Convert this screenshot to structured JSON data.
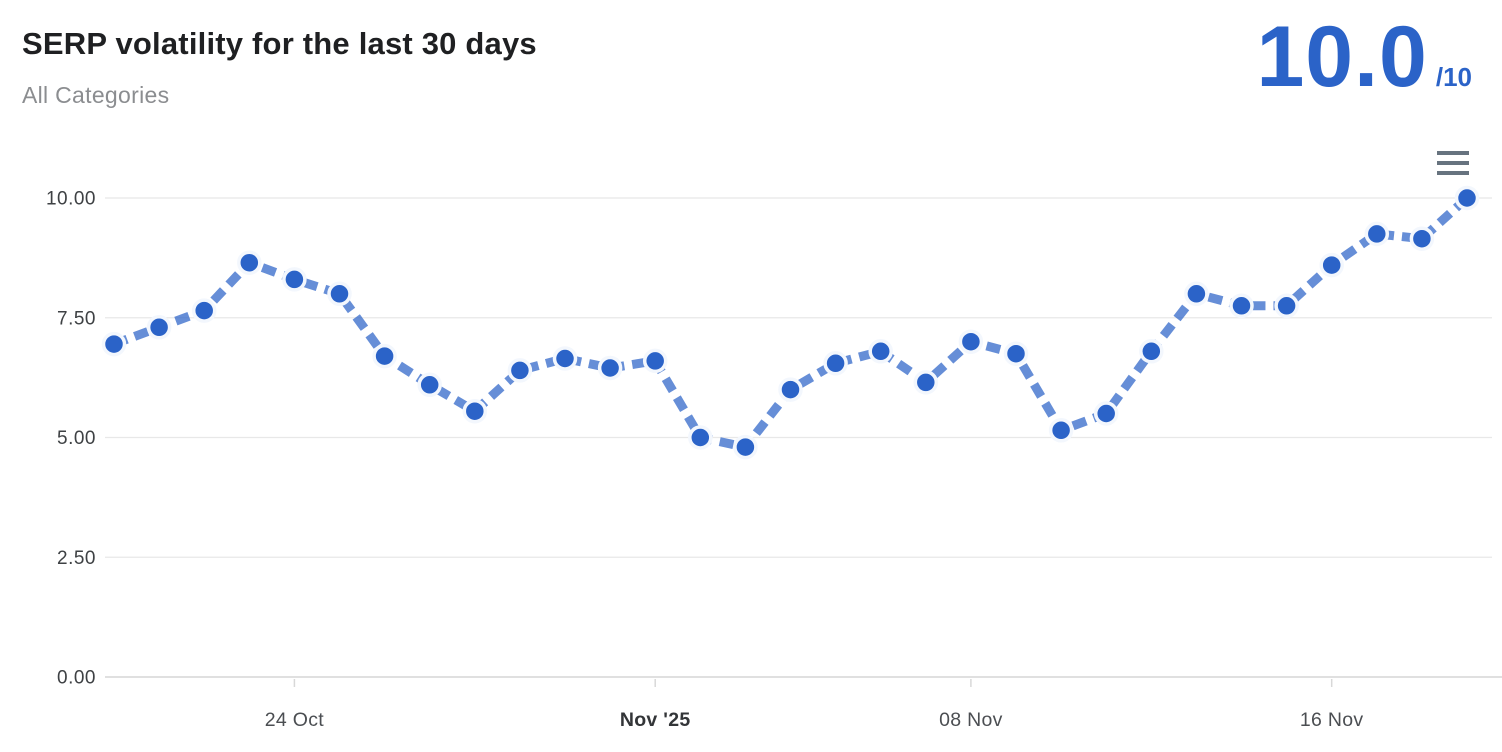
{
  "header": {
    "title": "SERP volatility for the last 30 days",
    "subtitle": "All Categories",
    "score_value": "10.0",
    "score_suffix": "/10"
  },
  "menu": {
    "icon": "hamburger-menu-icon"
  },
  "colors": {
    "accent_blue": "#2b63c8",
    "line_blue_opacity": 0.72,
    "dot_halo": "#f3f7fd",
    "grid": "#e8e8e8",
    "axis_line": "#e0e0e0",
    "tick": "#d8d8d8",
    "title_text": "#1f2022",
    "subtitle_text": "#8b8d90",
    "menu_icon": "#67737f"
  },
  "chart_data": {
    "type": "line",
    "title": "SERP volatility for the last 30 days",
    "subtitle": "All Categories",
    "series": [
      {
        "name": "SERP volatility",
        "values": [
          6.95,
          7.3,
          7.65,
          8.65,
          8.3,
          8.0,
          6.7,
          6.1,
          5.55,
          6.4,
          6.65,
          6.45,
          6.6,
          5.0,
          4.8,
          6.0,
          6.55,
          6.8,
          6.15,
          7.0,
          6.75,
          5.15,
          5.5,
          6.8,
          8.0,
          7.75,
          7.75,
          8.6,
          9.25,
          9.15,
          10.0
        ]
      }
    ],
    "x_tick_labels": [
      "24 Oct",
      "Nov '25",
      "08 Nov",
      "16 Nov"
    ],
    "x_tick_indices": [
      4,
      12,
      19,
      27
    ],
    "x_tick_bold_label": "Nov '25",
    "y_tick_labels": [
      "0.00",
      "2.50",
      "5.00",
      "7.50",
      "10.00"
    ],
    "y_tick_values": [
      0,
      2.5,
      5,
      7.5,
      10
    ],
    "ylim": [
      0,
      10
    ],
    "grid": true,
    "legend_position": "none",
    "line_style": "dashed",
    "marker": "circle",
    "current_value": "10.0",
    "max_score": "10"
  }
}
